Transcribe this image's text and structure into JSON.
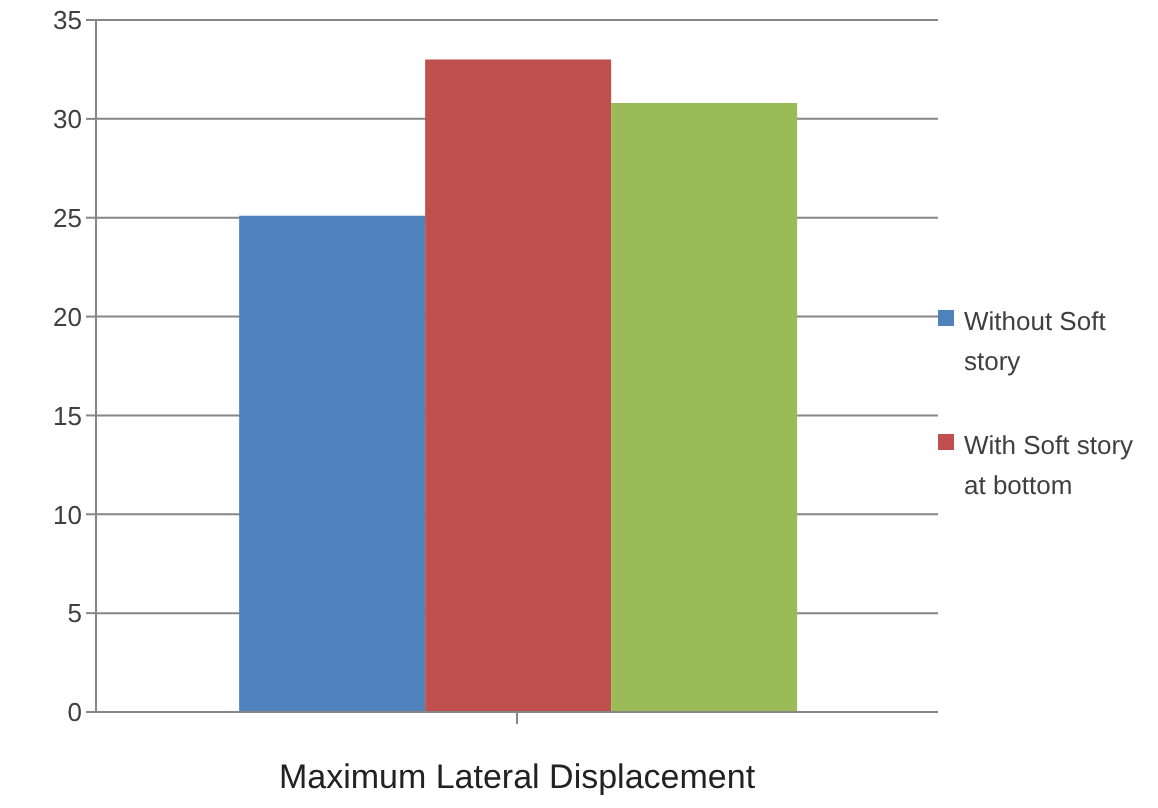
{
  "chart_data": {
    "type": "bar",
    "xlabel": "Maximum Lateral Displacement",
    "categories": [
      null
    ],
    "series": [
      {
        "name": "Without Soft story",
        "color": "#4f81bd",
        "values": [
          25.1
        ]
      },
      {
        "name": "With Soft story at bottom",
        "color": "#c0504d",
        "values": [
          33
        ]
      },
      {
        "color": "#9bbb59",
        "values": [
          30.8
        ]
      }
    ],
    "ylim": [
      0,
      35
    ],
    "yticks": [
      0,
      5,
      10,
      15,
      20,
      25,
      30,
      35
    ],
    "grid": "y",
    "legend": "right"
  }
}
